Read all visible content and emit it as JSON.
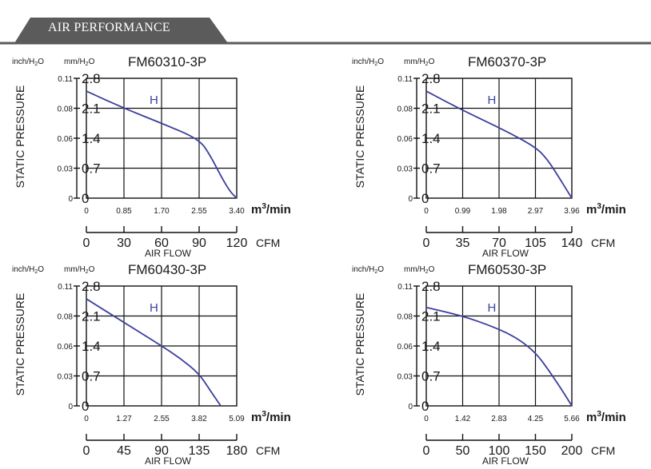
{
  "header": {
    "title": "AIR PERFORMANCE"
  },
  "chart_data": [
    {
      "type": "line",
      "title": "FM60310-3P",
      "series": [
        {
          "name": "H",
          "x": [
            0,
            0.85,
            1.7,
            2.55,
            2.8,
            3.05,
            3.25,
            3.4
          ],
          "y": [
            2.5,
            2.1,
            1.75,
            1.38,
            1.0,
            0.5,
            0.15,
            0
          ]
        }
      ],
      "xlabel_top": "m3/min",
      "x_ticks_top": [
        "0",
        "0.85",
        "1.70",
        "2.55",
        "3.40"
      ],
      "xlim_top": [
        0,
        3.4
      ],
      "xlabel_bottom": "CFM",
      "x_ticks_bottom": [
        "0",
        "30",
        "60",
        "90",
        "120"
      ],
      "xlim_bottom": [
        0,
        120
      ],
      "axis_title": "AIR FLOW",
      "ylabel": "STATIC PRESSURE",
      "ylabel_left_unit": "inch/H2O",
      "ylabel_right_unit": "mm/H2O",
      "y_ticks_mm": [
        "0",
        "0.7",
        "1.4",
        "2.1",
        "2.8"
      ],
      "y_ticks_inch": [
        "0",
        "0.03",
        "0.06",
        "0.08",
        "0.11"
      ],
      "ylim": [
        0,
        2.8
      ],
      "grid": true
    },
    {
      "type": "line",
      "title": "FM60370-3P",
      "series": [
        {
          "name": "H",
          "x": [
            0,
            0.99,
            1.98,
            2.97,
            3.3,
            3.6,
            3.85,
            3.96
          ],
          "y": [
            2.5,
            2.05,
            1.65,
            1.2,
            0.9,
            0.5,
            0.15,
            0
          ]
        }
      ],
      "xlabel_top": "m3/min",
      "x_ticks_top": [
        "0",
        "0.99",
        "1.98",
        "2.97",
        "3.96"
      ],
      "xlim_top": [
        0,
        3.96
      ],
      "xlabel_bottom": "CFM",
      "x_ticks_bottom": [
        "0",
        "35",
        "70",
        "105",
        "140"
      ],
      "xlim_bottom": [
        0,
        140
      ],
      "axis_title": "AIR FLOW",
      "ylabel": "STATIC PRESSURE",
      "ylabel_left_unit": "inch/H2O",
      "ylabel_right_unit": "mm/H2O",
      "y_ticks_mm": [
        "0",
        "0.7",
        "1.4",
        "2.1",
        "2.8"
      ],
      "y_ticks_inch": [
        "0",
        "0.03",
        "0.06",
        "0.08",
        "0.11"
      ],
      "ylim": [
        0,
        2.8
      ],
      "grid": true
    },
    {
      "type": "line",
      "title": "FM60430-3P",
      "series": [
        {
          "name": "H",
          "x": [
            0,
            1.27,
            2.55,
            3.2,
            3.82,
            4.2,
            4.55
          ],
          "y": [
            2.5,
            1.95,
            1.4,
            1.1,
            0.75,
            0.35,
            0
          ]
        }
      ],
      "xlabel_top": "m3/min",
      "x_ticks_top": [
        "0",
        "1.27",
        "2.55",
        "3.82",
        "5.09"
      ],
      "xlim_top": [
        0,
        5.09
      ],
      "xlabel_bottom": "CFM",
      "x_ticks_bottom": [
        "0",
        "45",
        "90",
        "135",
        "180"
      ],
      "xlim_bottom": [
        0,
        180
      ],
      "axis_title": "AIR FLOW",
      "ylabel": "STATIC PRESSURE",
      "ylabel_left_unit": "inch/H2O",
      "ylabel_right_unit": "mm/H2O",
      "y_ticks_mm": [
        "0",
        "0.7",
        "1.4",
        "2.1",
        "2.8"
      ],
      "y_ticks_inch": [
        "0",
        "0.03",
        "0.06",
        "0.08",
        "0.11"
      ],
      "ylim": [
        0,
        2.8
      ],
      "grid": true
    },
    {
      "type": "line",
      "title": "FM60530-3P",
      "series": [
        {
          "name": "H",
          "x": [
            0,
            1.42,
            2.6,
            3.5,
            4.25,
            4.8,
            5.3,
            5.66
          ],
          "y": [
            2.3,
            2.1,
            1.85,
            1.6,
            1.25,
            0.8,
            0.35,
            0
          ]
        }
      ],
      "xlabel_top": "m3/min",
      "x_ticks_top": [
        "0",
        "1.42",
        "2.83",
        "4.25",
        "5.66"
      ],
      "xlim_top": [
        0,
        5.66
      ],
      "xlabel_bottom": "CFM",
      "x_ticks_bottom": [
        "0",
        "50",
        "100",
        "150",
        "200"
      ],
      "xlim_bottom": [
        0,
        200
      ],
      "axis_title": "AIR FLOW",
      "ylabel": "STATIC PRESSURE",
      "ylabel_left_unit": "inch/H2O",
      "ylabel_right_unit": "mm/H2O",
      "y_ticks_mm": [
        "0",
        "0.7",
        "1.4",
        "2.1",
        "2.8"
      ],
      "y_ticks_inch": [
        "0",
        "0.03",
        "0.06",
        "0.08",
        "0.11"
      ],
      "ylim": [
        0,
        2.8
      ],
      "grid": true
    }
  ],
  "colors": {
    "header_bar": "#5b5b5b",
    "curve": "#3b3f9c",
    "grid": "#111111"
  }
}
